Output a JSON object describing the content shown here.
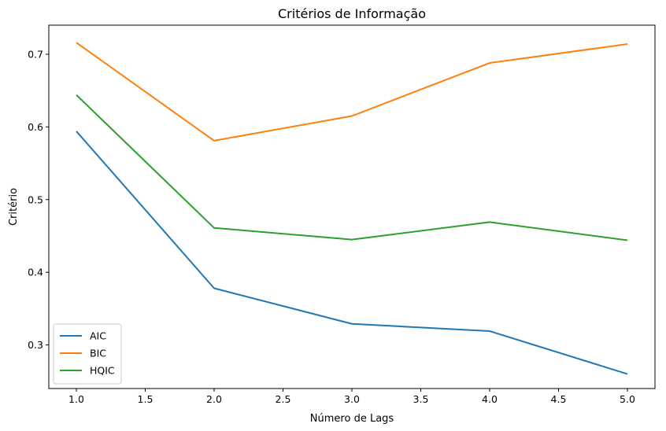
{
  "chart_data": {
    "type": "line",
    "title": "Critérios de Informação",
    "xlabel": "Número de Lags",
    "ylabel": "Critério",
    "x": [
      1,
      2,
      3,
      4,
      5
    ],
    "xlim": [
      0.8,
      5.2
    ],
    "ylim": [
      0.24,
      0.74
    ],
    "xticks": [
      1.0,
      1.5,
      2.0,
      2.5,
      3.0,
      3.5,
      4.0,
      4.5,
      5.0
    ],
    "xtick_labels": [
      "1.0",
      "1.5",
      "2.0",
      "2.5",
      "3.0",
      "3.5",
      "4.0",
      "4.5",
      "5.0"
    ],
    "yticks": [
      0.3,
      0.4,
      0.5,
      0.6,
      0.7
    ],
    "ytick_labels": [
      "0.3",
      "0.4",
      "0.5",
      "0.6",
      "0.7"
    ],
    "grid": false,
    "legend_position": "lower-left",
    "series": [
      {
        "name": "AIC",
        "color": "#1f77b4",
        "values": [
          0.594,
          0.378,
          0.329,
          0.319,
          0.26
        ]
      },
      {
        "name": "BIC",
        "color": "#ff7f0e",
        "values": [
          0.716,
          0.581,
          0.615,
          0.688,
          0.714
        ]
      },
      {
        "name": "HQIC",
        "color": "#2ca02c",
        "values": [
          0.644,
          0.461,
          0.445,
          0.469,
          0.444
        ]
      }
    ]
  }
}
